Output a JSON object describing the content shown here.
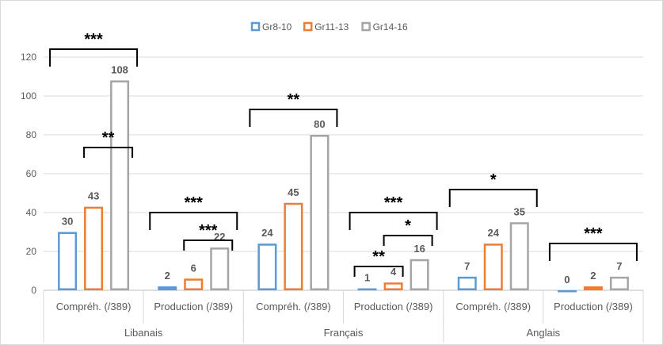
{
  "chart_data": {
    "type": "bar",
    "title": "",
    "xlabel": "",
    "ylabel": "",
    "ylim": [
      0,
      120
    ],
    "yticks": [
      0,
      20,
      40,
      60,
      80,
      100,
      120
    ],
    "grid": true,
    "legend_position": "top",
    "groups": [
      "Libanais",
      "Français",
      "Anglais"
    ],
    "categories": [
      "Compréh. (/389)",
      "Production (/389)",
      "Compréh. (/389)",
      "Production (/389)",
      "Compréh. (/389)",
      "Production (/389)"
    ],
    "category_group": [
      0,
      0,
      1,
      1,
      2,
      2
    ],
    "series": [
      {
        "name": "Gr8-10",
        "color": "#5b9bd5",
        "values": [
          30,
          2,
          24,
          1,
          7,
          0
        ]
      },
      {
        "name": "Gr11-13",
        "color": "#ed7d31",
        "values": [
          43,
          6,
          45,
          4,
          24,
          2
        ]
      },
      {
        "name": "Gr14-16",
        "color": "#a5a5a5",
        "values": [
          108,
          22,
          80,
          16,
          35,
          7
        ]
      }
    ],
    "significance": [
      {
        "category": 0,
        "from": 0,
        "to": 2,
        "label": "***"
      },
      {
        "category": 0,
        "from": 1,
        "to": 2,
        "label": "**"
      },
      {
        "category": 1,
        "from": 0,
        "to": 2,
        "label": "***"
      },
      {
        "category": 1,
        "from": 1,
        "to": 2,
        "label": "***"
      },
      {
        "category": 2,
        "from": 0,
        "to": 2,
        "label": "**"
      },
      {
        "category": 3,
        "from": 0,
        "to": 2,
        "label": "***"
      },
      {
        "category": 3,
        "from": 1,
        "to": 2,
        "label": "*"
      },
      {
        "category": 3,
        "from": 0,
        "to": 1,
        "label": "**"
      },
      {
        "category": 4,
        "from": 0,
        "to": 2,
        "label": "*"
      },
      {
        "category": 5,
        "from": 0,
        "to": 2,
        "label": "***"
      }
    ]
  }
}
